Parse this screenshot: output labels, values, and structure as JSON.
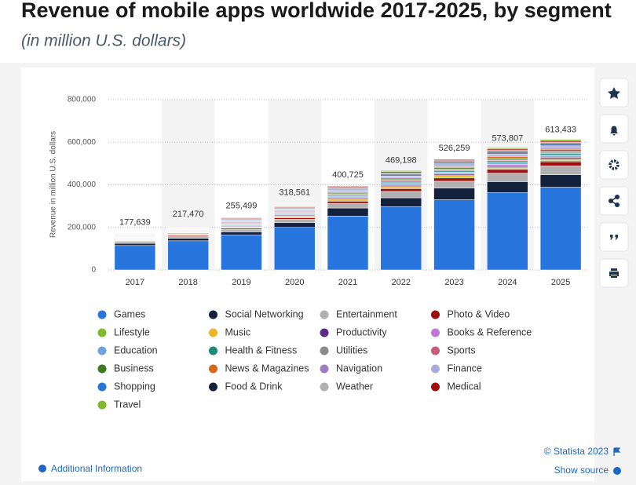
{
  "chart_data": {
    "type": "stacked-bar",
    "title": "Revenue of mobile apps worldwide 2017-2025, by segment",
    "subtitle": "(in million U.S. dollars)",
    "y_label": "Revenue in million U.S. dollars",
    "categories": [
      "2017",
      "2018",
      "2019",
      "2020",
      "2021",
      "2022",
      "2023",
      "2024",
      "2025"
    ],
    "ylim": [
      0,
      800000
    ],
    "yticks": [
      0,
      {
        "value": 200000,
        "label": "200,000"
      },
      {
        "value": 400000,
        "label": "400,000"
      },
      {
        "value": 600000,
        "label": "600,000"
      },
      {
        "value": 800000,
        "label": "800,000"
      }
    ],
    "grid": true,
    "totals": [
      {
        "value": 177639,
        "label": "177,639"
      },
      {
        "value": 217470,
        "label": "217,470"
      },
      {
        "value": 255499,
        "label": "255,499"
      },
      {
        "value": 318561,
        "label": "318,561"
      },
      {
        "value": 400725,
        "label": "400,725"
      },
      {
        "value": 469198,
        "label": "469,198"
      },
      {
        "value": 526259,
        "label": "526,259"
      },
      {
        "value": 573807,
        "label": "573,807"
      },
      {
        "value": 613433,
        "label": "613,433"
      }
    ],
    "series": [
      {
        "name": "Games",
        "color": "#2876dd",
        "values": [
          115000,
          137000,
          165000,
          200000,
          253000,
          297000,
          330000,
          363000,
          389000
        ]
      },
      {
        "name": "Social Networking",
        "color": "#14213d",
        "values": [
          10000,
          12000,
          14000,
          22000,
          38000,
          42000,
          55000,
          52000,
          58000
        ]
      },
      {
        "name": "Entertainment",
        "color": "#b0b0b0",
        "values": [
          8000,
          10000,
          12000,
          16000,
          22000,
          30000,
          32000,
          40000,
          42000
        ]
      },
      {
        "name": "Photo & Video",
        "color": "#a00d0d",
        "values": [
          3000,
          4000,
          5000,
          7000,
          10000,
          13000,
          15000,
          17000,
          19000
        ]
      },
      {
        "name": "Lifestyle",
        "color": "#80b82e",
        "values": [
          2000,
          3000,
          3000,
          4000,
          5000,
          5000,
          6000,
          6000,
          7000
        ]
      },
      {
        "name": "Music",
        "color": "#f0b429",
        "values": [
          2000,
          3000,
          3000,
          4000,
          5000,
          5000,
          6000,
          6000,
          7000
        ]
      },
      {
        "name": "Productivity",
        "color": "#5e2a84",
        "values": [
          2000,
          3000,
          3000,
          4000,
          5000,
          5000,
          6000,
          6000,
          7000
        ]
      },
      {
        "name": "Books & Reference",
        "color": "#c575d6",
        "values": [
          2000,
          2000,
          3000,
          3000,
          4000,
          5000,
          5000,
          6000,
          6000
        ]
      },
      {
        "name": "Education",
        "color": "#6ea3e0",
        "values": [
          2000,
          2000,
          3000,
          3000,
          4000,
          5000,
          5000,
          6000,
          6000
        ]
      },
      {
        "name": "Health & Fitness",
        "color": "#1a8c78",
        "values": [
          2000,
          2000,
          3000,
          3000,
          4000,
          5000,
          5000,
          6000,
          6000
        ]
      },
      {
        "name": "Utilities",
        "color": "#8a8a8a",
        "values": [
          2000,
          2000,
          3000,
          3000,
          4000,
          5000,
          5000,
          6000,
          6000
        ]
      },
      {
        "name": "Sports",
        "color": "#c95c7a",
        "values": [
          2000,
          2000,
          3000,
          3000,
          4000,
          5000,
          5000,
          6000,
          6000
        ]
      },
      {
        "name": "Business",
        "color": "#3f7a1c",
        "values": [
          2000,
          2000,
          3000,
          3000,
          4000,
          5000,
          5000,
          6000,
          6000
        ]
      },
      {
        "name": "News & Magazines",
        "color": "#d4691c",
        "values": [
          2000,
          2000,
          3000,
          3000,
          4000,
          5000,
          5000,
          6000,
          6000
        ]
      },
      {
        "name": "Navigation",
        "color": "#9b7fc2",
        "values": [
          2000,
          2000,
          3000,
          3000,
          4000,
          5000,
          5000,
          6000,
          6000
        ]
      },
      {
        "name": "Finance",
        "color": "#a8acd9",
        "values": [
          2000,
          2000,
          3000,
          3000,
          4000,
          5000,
          5000,
          6000,
          6000
        ]
      },
      {
        "name": "Shopping",
        "color": "#2876dd",
        "values": [
          2000,
          2000,
          3000,
          3000,
          4000,
          5000,
          5000,
          6000,
          6000
        ]
      },
      {
        "name": "Food & Drink",
        "color": "#14213d",
        "values": [
          2000,
          2000,
          3000,
          3000,
          4000,
          5000,
          5000,
          6000,
          6000
        ]
      },
      {
        "name": "Weather",
        "color": "#b0b0b0",
        "values": [
          2000,
          2000,
          3000,
          3000,
          4000,
          5000,
          5000,
          6000,
          6000
        ]
      },
      {
        "name": "Medical",
        "color": "#a00d0d",
        "values": [
          2000,
          2000,
          3000,
          3000,
          4000,
          5000,
          5000,
          6000,
          6000
        ]
      },
      {
        "name": "Travel",
        "color": "#80b82e",
        "values": [
          2000,
          2000,
          3000,
          3000,
          4000,
          5000,
          5000,
          6000,
          6000
        ]
      }
    ]
  },
  "page": {
    "copyright": "© Statista 2023",
    "show_source": "Show source",
    "additional_information": "Additional Information"
  }
}
